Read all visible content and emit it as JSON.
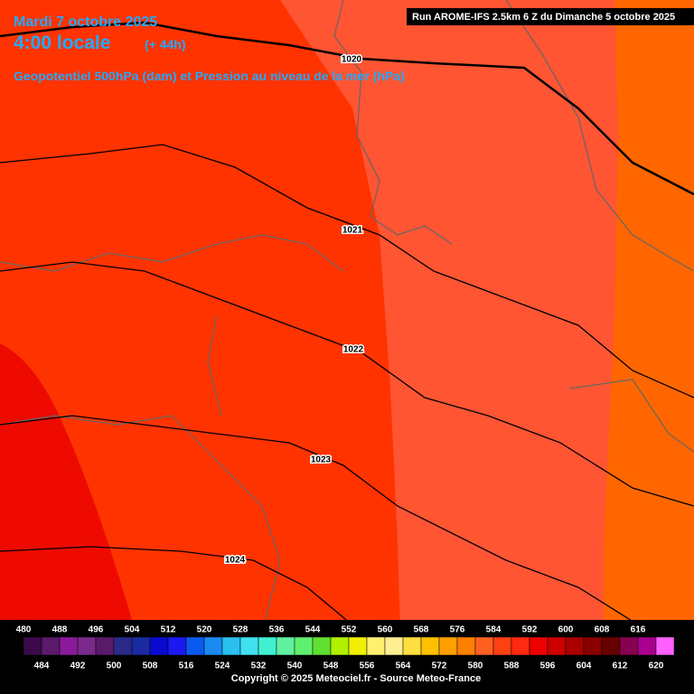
{
  "header": {
    "date": "Mardi 7 octobre 2025",
    "time": "4:00 locale",
    "lead": "(+ 44h)",
    "subtitle": "Geopotentiel 500hPa (dam) et Pression au niveau de la mer (hPa)",
    "run": "Run AROME-IFS 2.5km 6 Z du Dimanche 5 octobre 2025"
  },
  "isobars": [
    "1020",
    "1021",
    "1022",
    "1023",
    "1024"
  ],
  "legend": {
    "labels": [
      480,
      484,
      488,
      492,
      496,
      500,
      504,
      508,
      512,
      516,
      520,
      524,
      528,
      532,
      536,
      540,
      544,
      548,
      552,
      556,
      560,
      564,
      568,
      572,
      576,
      580,
      584,
      588,
      592,
      596,
      600,
      604,
      608,
      612,
      616,
      620
    ],
    "colors": [
      "#3a0a4a",
      "#5c1a6a",
      "#8a1a9a",
      "#7a2a8a",
      "#5a1a6a",
      "#2a2a8a",
      "#1a2aa0",
      "#0a0ad0",
      "#1a1af0",
      "#0a5af0",
      "#1a8af0",
      "#2ac0f0",
      "#40e0f0",
      "#40f0d0",
      "#60f0a0",
      "#60f070",
      "#60e030",
      "#b0f000",
      "#f0f000",
      "#fff070",
      "#ffef90",
      "#ffe040",
      "#ffc000",
      "#ffa000",
      "#ff8000",
      "#ff6020",
      "#ff4010",
      "#ff2a10",
      "#ee0000",
      "#cc0000",
      "#aa0000",
      "#880000",
      "#660000",
      "#880050",
      "#aa0090",
      "#ff60ff"
    ]
  },
  "footer": "Copyright © 2025 Meteociel.fr - Source Meteo-France"
}
